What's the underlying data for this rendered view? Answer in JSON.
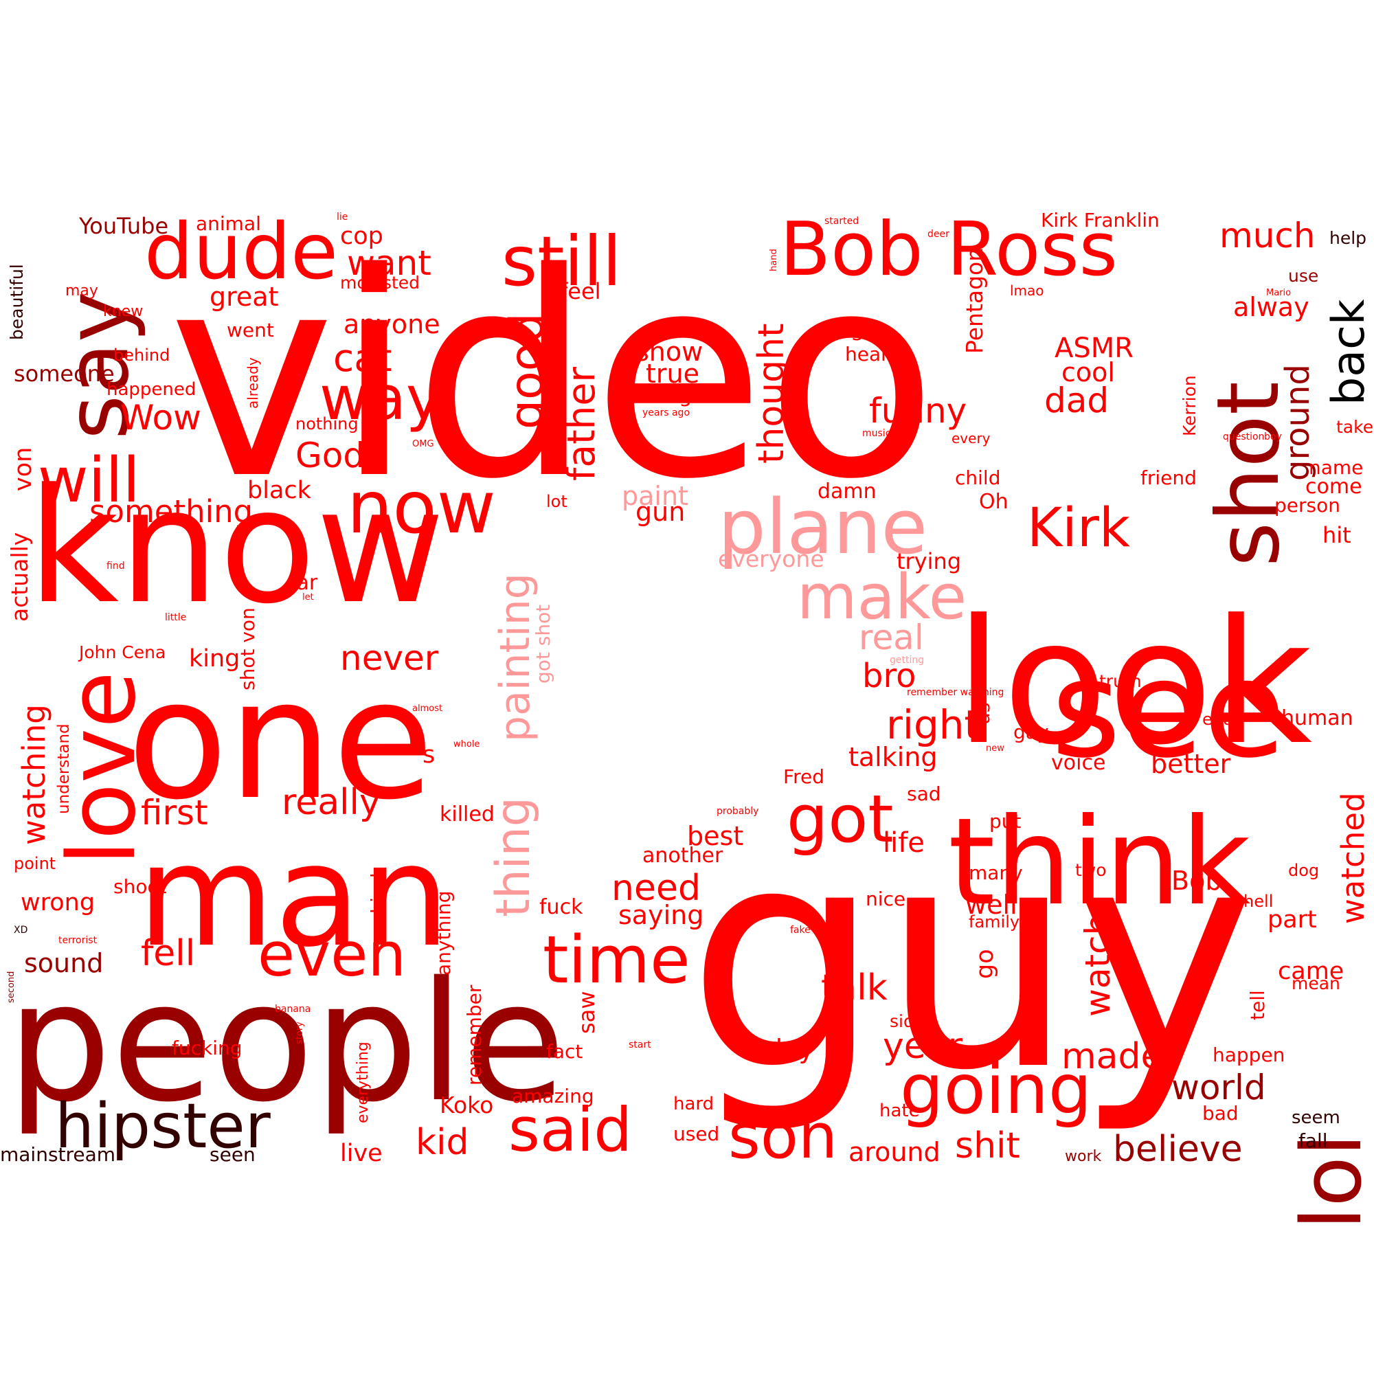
{
  "title": "",
  "words": [
    {
      "text": "video",
      "color": "#ff0000"
    },
    {
      "text": "guy",
      "color": "#ff0000"
    },
    {
      "text": "people",
      "color": "#990000"
    },
    {
      "text": "know",
      "color": "#ff0000"
    },
    {
      "text": "one",
      "color": "#ff0000"
    },
    {
      "text": "look",
      "color": "#ff0000"
    },
    {
      "text": "man",
      "color": "#ff0000"
    },
    {
      "text": "see",
      "color": "#ff0000"
    },
    {
      "text": "think",
      "color": "#ff0000"
    },
    {
      "text": "love",
      "color": "#ff0000"
    },
    {
      "text": "say",
      "color": "#990000"
    },
    {
      "text": "shot",
      "color": "#990000"
    },
    {
      "text": "lol",
      "color": "#990000"
    },
    {
      "text": "dude",
      "color": "#ff0000"
    },
    {
      "text": "Bob Ross",
      "color": "#ff0000"
    },
    {
      "text": "still",
      "color": "#ff0000"
    },
    {
      "text": "plane",
      "color": "#ff9999"
    },
    {
      "text": "now",
      "color": "#ff0000"
    },
    {
      "text": "hipster",
      "color": "#330000"
    },
    {
      "text": "time",
      "color": "#ff0000"
    },
    {
      "text": "even",
      "color": "#ff0000"
    },
    {
      "text": "said",
      "color": "#ff0000"
    },
    {
      "text": "going",
      "color": "#ff0000"
    },
    {
      "text": "son",
      "color": "#ff0000"
    },
    {
      "text": "got",
      "color": "#ff0000"
    },
    {
      "text": "make",
      "color": "#ff9999"
    },
    {
      "text": "Kirk",
      "color": "#ff0000"
    },
    {
      "text": "will",
      "color": "#ff0000"
    },
    {
      "text": "way",
      "color": "#ff0000"
    },
    {
      "text": "back",
      "color": "#000000"
    },
    {
      "text": "thing",
      "color": "#ff9999"
    },
    {
      "text": "good",
      "color": "#ff0000"
    },
    {
      "text": "painting",
      "color": "#ff9999"
    },
    {
      "text": "father",
      "color": "#ff0000"
    },
    {
      "text": "thought",
      "color": "#ff0000"
    },
    {
      "text": "ground",
      "color": "#990000"
    },
    {
      "text": "watched",
      "color": "#ff0000"
    },
    {
      "text": "much",
      "color": "#ff0000"
    },
    {
      "text": "want",
      "color": "#ff0000"
    },
    {
      "text": "cat",
      "color": "#ff0000"
    },
    {
      "text": "Wow",
      "color": "#ff0000"
    },
    {
      "text": "God",
      "color": "#ff0000"
    },
    {
      "text": "something",
      "color": "#ff0000"
    },
    {
      "text": "first",
      "color": "#ff0000"
    },
    {
      "text": "really",
      "color": "#ff0000"
    },
    {
      "text": "fell",
      "color": "#ff0000"
    },
    {
      "text": "never",
      "color": "#ff0000"
    },
    {
      "text": "need",
      "color": "#ff0000"
    },
    {
      "text": "world",
      "color": "#990000"
    },
    {
      "text": "believe",
      "color": "#990000"
    },
    {
      "text": "shit",
      "color": "#ff0000"
    },
    {
      "text": "made",
      "color": "#ff0000"
    },
    {
      "text": "year",
      "color": "#ff0000"
    },
    {
      "text": "talk",
      "color": "#ff0000"
    },
    {
      "text": "watch",
      "color": "#ff0000"
    },
    {
      "text": "right",
      "color": "#ff0000"
    },
    {
      "text": "real",
      "color": "#ff9999"
    },
    {
      "text": "funny",
      "color": "#ff0000"
    },
    {
      "text": "dad",
      "color": "#ff0000"
    },
    {
      "text": "ASMR",
      "color": "#ff0000"
    },
    {
      "text": "cool",
      "color": "#ff0000"
    },
    {
      "text": "bro",
      "color": "#ff0000"
    },
    {
      "text": "kid",
      "color": "#ff0000"
    },
    {
      "text": "watching",
      "color": "#ff0000"
    },
    {
      "text": "von",
      "color": "#ff0000"
    },
    {
      "text": "sound",
      "color": "#990000"
    },
    {
      "text": "wrong",
      "color": "#ff0000"
    },
    {
      "text": "actually",
      "color": "#ff0000"
    },
    {
      "text": "someone",
      "color": "#990000"
    },
    {
      "text": "black",
      "color": "#ff0000"
    },
    {
      "text": "great",
      "color": "#ff0000"
    },
    {
      "text": "anyone",
      "color": "#ff0000"
    },
    {
      "text": "cop",
      "color": "#ff0000"
    },
    {
      "text": "feel",
      "color": "#ff0000"
    },
    {
      "text": "show",
      "color": "#ff0000"
    },
    {
      "text": "true",
      "color": "#ff0000"
    },
    {
      "text": "though",
      "color": "#ff0000"
    },
    {
      "text": "stop",
      "color": "#ff0000"
    },
    {
      "text": "hear",
      "color": "#ff0000"
    },
    {
      "text": "alway",
      "color": "#ff0000"
    },
    {
      "text": "Pentagon",
      "color": "#ff0000"
    },
    {
      "text": "Kirk Franklin",
      "color": "#ff0000"
    },
    {
      "text": "YouTube",
      "color": "#990000"
    },
    {
      "text": "animal",
      "color": "#ff0000"
    },
    {
      "text": "molested",
      "color": "#ff0000"
    },
    {
      "text": "help",
      "color": "#330000"
    },
    {
      "text": "use",
      "color": "#990000"
    },
    {
      "text": "beautiful",
      "color": "#330000"
    },
    {
      "text": "may",
      "color": "#ff0000"
    },
    {
      "text": "knew",
      "color": "#ff0000"
    },
    {
      "text": "went",
      "color": "#ff0000"
    },
    {
      "text": "behind",
      "color": "#ff0000"
    },
    {
      "text": "happened",
      "color": "#ff0000"
    },
    {
      "text": "nothing",
      "color": "#ff0000"
    },
    {
      "text": "paint",
      "color": "#ff9999"
    },
    {
      "text": "gun",
      "color": "#ff0000"
    },
    {
      "text": "everyone",
      "color": "#ff9999"
    },
    {
      "text": "damn",
      "color": "#ff0000"
    },
    {
      "text": "child",
      "color": "#ff0000"
    },
    {
      "text": "friend",
      "color": "#ff0000"
    },
    {
      "text": "take",
      "color": "#ff0000"
    },
    {
      "text": "name",
      "color": "#ff0000"
    },
    {
      "text": "come",
      "color": "#ff0000"
    },
    {
      "text": "person",
      "color": "#ff0000"
    },
    {
      "text": "hit",
      "color": "#ff0000"
    },
    {
      "text": "Oh",
      "color": "#ff0000"
    },
    {
      "text": "trying",
      "color": "#ff0000"
    },
    {
      "text": "lot",
      "color": "#ff0000"
    },
    {
      "text": "car",
      "color": "#ff0000"
    },
    {
      "text": "king",
      "color": "#ff0000"
    },
    {
      "text": "John Cena",
      "color": "#ff0000"
    },
    {
      "text": "shot von",
      "color": "#ff0000"
    },
    {
      "text": "got shot",
      "color": "#ff9999"
    },
    {
      "text": "understand",
      "color": "#ff0000"
    },
    {
      "text": "s",
      "color": "#ff0000"
    },
    {
      "text": "killed",
      "color": "#ff0000"
    },
    {
      "text": "point",
      "color": "#ff0000"
    },
    {
      "text": "shoot",
      "color": "#ff0000"
    },
    {
      "text": "kind",
      "color": "#ff0000"
    },
    {
      "text": "anything",
      "color": "#ff0000"
    },
    {
      "text": "fuck",
      "color": "#ff0000"
    },
    {
      "text": "saying",
      "color": "#ff0000"
    },
    {
      "text": "remember",
      "color": "#ff0000"
    },
    {
      "text": "saw",
      "color": "#ff0000"
    },
    {
      "text": "everything",
      "color": "#ff0000"
    },
    {
      "text": "fucking",
      "color": "#ff0000"
    },
    {
      "text": "fact",
      "color": "#ff0000"
    },
    {
      "text": "Koko",
      "color": "#ff0000"
    },
    {
      "text": "amazing",
      "color": "#ff0000"
    },
    {
      "text": "live",
      "color": "#ff0000"
    },
    {
      "text": "day",
      "color": "#ff0000"
    },
    {
      "text": "hard",
      "color": "#ff0000"
    },
    {
      "text": "used",
      "color": "#ff0000"
    },
    {
      "text": "around",
      "color": "#ff0000"
    },
    {
      "text": "hate",
      "color": "#ff0000"
    },
    {
      "text": "side",
      "color": "#ff0000"
    },
    {
      "text": "go",
      "color": "#ff0000"
    },
    {
      "text": "well",
      "color": "#ff0000"
    },
    {
      "text": "family",
      "color": "#ff0000"
    },
    {
      "text": "nice",
      "color": "#ff0000"
    },
    {
      "text": "many",
      "color": "#ff0000"
    },
    {
      "text": "two",
      "color": "#ff0000"
    },
    {
      "text": "Bob",
      "color": "#ff0000"
    },
    {
      "text": "best",
      "color": "#ff0000"
    },
    {
      "text": "another",
      "color": "#ff0000"
    },
    {
      "text": "life",
      "color": "#ff0000"
    },
    {
      "text": "put",
      "color": "#ff0000"
    },
    {
      "text": "sad",
      "color": "#ff0000"
    },
    {
      "text": "Fred",
      "color": "#ff0000"
    },
    {
      "text": "talking",
      "color": "#ff0000"
    },
    {
      "text": "voice",
      "color": "#ff0000"
    },
    {
      "text": "better",
      "color": "#ff0000"
    },
    {
      "text": "gay",
      "color": "#ff0000"
    },
    {
      "text": "us",
      "color": "#ff0000"
    },
    {
      "text": "end",
      "color": "#ff0000"
    },
    {
      "text": "human",
      "color": "#ff0000"
    },
    {
      "text": "truth",
      "color": "#ff0000"
    },
    {
      "text": "dog",
      "color": "#ff0000"
    },
    {
      "text": "hell",
      "color": "#ff0000"
    },
    {
      "text": "part",
      "color": "#ff0000"
    },
    {
      "text": "came",
      "color": "#ff0000"
    },
    {
      "text": "mean",
      "color": "#ff0000"
    },
    {
      "text": "tell",
      "color": "#ff0000"
    },
    {
      "text": "happen",
      "color": "#ff0000"
    },
    {
      "text": "bad",
      "color": "#ff0000"
    },
    {
      "text": "seem",
      "color": "#330000"
    },
    {
      "text": "fall",
      "color": "#330000"
    },
    {
      "text": "work",
      "color": "#990000"
    },
    {
      "text": "mainstream",
      "color": "#330000"
    },
    {
      "text": "seen",
      "color": "#330000"
    },
    {
      "text": "Kerrion",
      "color": "#ff0000"
    },
    {
      "text": "every",
      "color": "#ff0000"
    },
    {
      "text": "lmao",
      "color": "#ff0000"
    },
    {
      "text": "Mario",
      "color": "#ff0000"
    },
    {
      "text": "question",
      "color": "#ff0000"
    },
    {
      "text": "boy",
      "color": "#ff0000"
    },
    {
      "text": "music",
      "color": "#ff0000"
    },
    {
      "text": "years ago",
      "color": "#ff0000"
    },
    {
      "text": "started",
      "color": "#ff0000"
    },
    {
      "text": "deer",
      "color": "#ff0000"
    },
    {
      "text": "hand",
      "color": "#ff0000"
    },
    {
      "text": "lie",
      "color": "#ff0000"
    },
    {
      "text": "already",
      "color": "#ff0000"
    },
    {
      "text": "OMG",
      "color": "#ff0000"
    },
    {
      "text": "find",
      "color": "#ff0000"
    },
    {
      "text": "let",
      "color": "#ff0000"
    },
    {
      "text": "little",
      "color": "#ff0000"
    },
    {
      "text": "almost",
      "color": "#ff0000"
    },
    {
      "text": "whole",
      "color": "#ff0000"
    },
    {
      "text": "remember watching",
      "color": "#ff0000"
    },
    {
      "text": "getting",
      "color": "#ff9999"
    },
    {
      "text": "new",
      "color": "#ff0000"
    },
    {
      "text": "probably",
      "color": "#ff0000"
    },
    {
      "text": "fake",
      "color": "#ff0000"
    },
    {
      "text": "start",
      "color": "#ff0000"
    },
    {
      "text": "banana",
      "color": "#ff0000"
    },
    {
      "text": "story",
      "color": "#ff0000"
    },
    {
      "text": "terrorist",
      "color": "#ff0000"
    },
    {
      "text": "XD",
      "color": "#330000"
    },
    {
      "text": "second",
      "color": "#990000"
    }
  ]
}
